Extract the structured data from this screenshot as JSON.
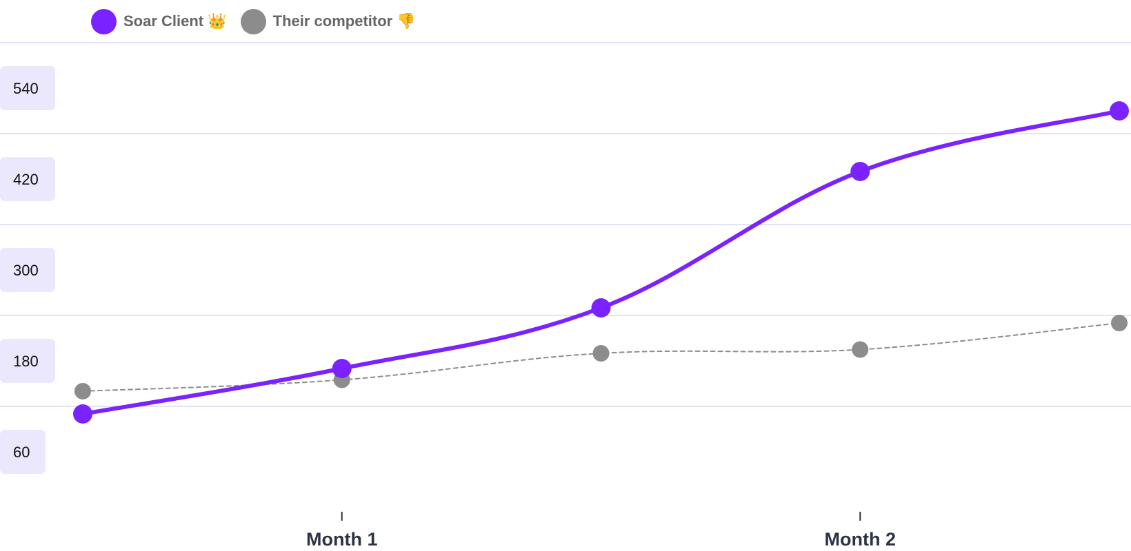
{
  "chart_data": {
    "type": "line",
    "title": "",
    "xlabel": "",
    "ylabel": "",
    "x_tick_labels": [
      "Month 1",
      "Month 2"
    ],
    "x_tick_positions": [
      1,
      3
    ],
    "x": [
      0,
      1,
      2,
      3,
      4
    ],
    "y_ticks": [
      60,
      180,
      300,
      420,
      540
    ],
    "ylim": [
      0,
      600
    ],
    "grid": true,
    "legend_position": "top-left",
    "series": [
      {
        "name": "Soar Client 👑",
        "color": "#7a22ff",
        "style": "solid",
        "values": [
          110,
          170,
          250,
          430,
          510
        ]
      },
      {
        "name": "Their competitor 👎",
        "color": "#8c8c8c",
        "style": "dashed",
        "values": [
          140,
          155,
          190,
          195,
          230
        ]
      }
    ]
  },
  "colors": {
    "grid": "#e4e2f7",
    "tick_badge": "#ebe8fd",
    "tick_text": "#111111",
    "x_label": "#2c3345"
  }
}
